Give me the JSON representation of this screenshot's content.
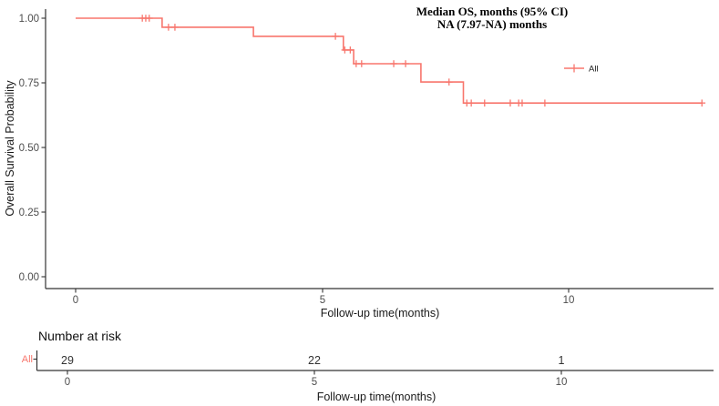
{
  "figure": {
    "annotation": {
      "line1": "Median OS, months (95% CI)",
      "line2": "NA (7.97-NA) months"
    },
    "legend": {
      "label": "All"
    },
    "y_axis": {
      "title": "Overall Survival Probability",
      "ticks": [
        "1.00",
        "0.75",
        "0.50",
        "0.25",
        "0.00"
      ]
    },
    "x_axis": {
      "title": "Follow-up time(months)",
      "ticks": [
        "0",
        "5",
        "10"
      ]
    },
    "risk_table": {
      "title": "Number at risk",
      "row_label": "All",
      "values": [
        "29",
        "22",
        "1"
      ],
      "x_axis": {
        "title": "Follow-up time(months)",
        "ticks": [
          "0",
          "5",
          "10"
        ]
      }
    },
    "colors": {
      "curve": "#F8766D",
      "axis": "#333333",
      "tick_label": "#4d4d4d"
    }
  },
  "chart_data": {
    "type": "line",
    "subtype": "kaplan-meier-step",
    "title": "",
    "xlabel": "Follow-up time(months)",
    "ylabel": "Overall Survival Probability",
    "xlim": [
      -0.6,
      12.9
    ],
    "ylim": [
      0,
      1.0
    ],
    "x_ticks": [
      0,
      5,
      10
    ],
    "y_ticks": [
      1.0,
      0.75,
      0.5,
      0.25,
      0.0
    ],
    "grid": false,
    "legend_position": "right-inside",
    "annotation": "Median OS, months (95% CI) NA (7.97-NA) months",
    "series": [
      {
        "name": "All",
        "color": "#F8766D",
        "steps": [
          [
            0,
            1.0
          ],
          [
            1.75,
            0.965
          ],
          [
            3.6,
            0.93
          ],
          [
            5.42,
            0.877
          ],
          [
            5.63,
            0.824
          ],
          [
            6.99,
            0.753
          ],
          [
            7.85,
            0.672
          ]
        ],
        "end_time": 12.68,
        "censors": [
          [
            1.35,
            1.0
          ],
          [
            1.42,
            1.0
          ],
          [
            1.49,
            1.0
          ],
          [
            1.88,
            0.965
          ],
          [
            2.01,
            0.965
          ],
          [
            5.26,
            0.93
          ],
          [
            5.45,
            0.877
          ],
          [
            5.56,
            0.877
          ],
          [
            5.68,
            0.824
          ],
          [
            5.79,
            0.824
          ],
          [
            6.44,
            0.824
          ],
          [
            6.68,
            0.824
          ],
          [
            7.56,
            0.753
          ],
          [
            7.92,
            0.672
          ],
          [
            8.01,
            0.672
          ],
          [
            8.28,
            0.672
          ],
          [
            8.8,
            0.672
          ],
          [
            8.97,
            0.672
          ],
          [
            9.04,
            0.672
          ],
          [
            9.5,
            0.672
          ],
          [
            12.68,
            0.672
          ]
        ]
      }
    ],
    "number_at_risk": {
      "times": [
        0,
        5,
        10
      ],
      "series": [
        {
          "name": "All",
          "values": [
            29,
            22,
            1
          ]
        }
      ]
    }
  }
}
